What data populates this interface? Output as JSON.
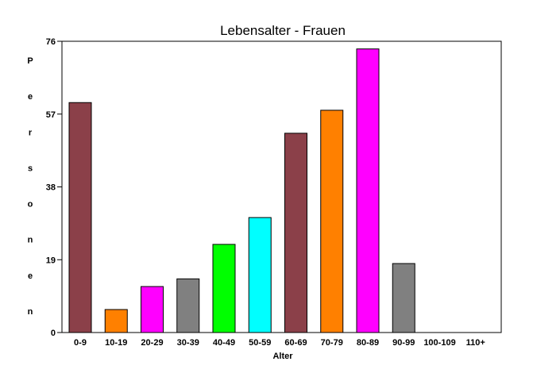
{
  "chart_data": {
    "type": "bar",
    "title": "Lebensalter - Frauen",
    "xlabel": "Alter",
    "ylabel": "Personen",
    "categories": [
      "0-9",
      "10-19",
      "20-29",
      "30-39",
      "40-49",
      "50-59",
      "60-69",
      "70-79",
      "80-89",
      "90-99",
      "100-109",
      "110+"
    ],
    "values": [
      60,
      6,
      12,
      14,
      23,
      30,
      52,
      58,
      74,
      18,
      0,
      0
    ],
    "colors": [
      "#8b4049",
      "#ff8000",
      "#ff00ff",
      "#808080",
      "#00ff00",
      "#00ffff",
      "#8b4049",
      "#ff8000",
      "#ff00ff",
      "#808080",
      "#8b4049",
      "#ff8000"
    ],
    "yticks": [
      0,
      19,
      38,
      57,
      76
    ],
    "ylim": [
      0,
      76
    ],
    "grid": false,
    "legend": "none"
  }
}
